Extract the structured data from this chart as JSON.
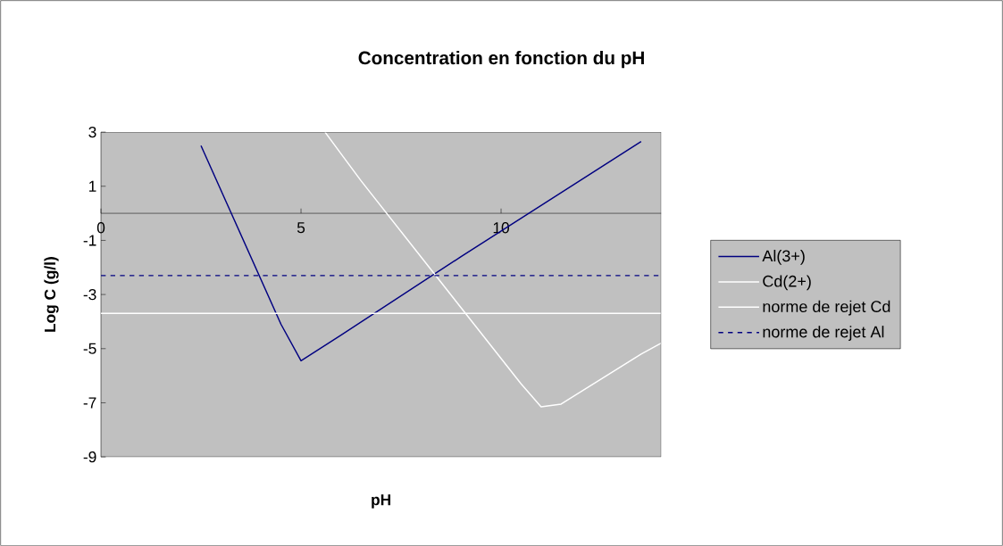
{
  "chart_data": {
    "type": "line",
    "title": "Concentration en fonction du pH",
    "xlabel": "pH",
    "ylabel": "Log C (g/l)",
    "xlim": [
      0,
      14
    ],
    "xticks": [
      0,
      5,
      10
    ],
    "ylim": [
      -9,
      3
    ],
    "yticks": [
      -9,
      -7,
      -5,
      -3,
      -1,
      1,
      3
    ],
    "grid": false,
    "legend": "right",
    "marker": "none",
    "series": [
      {
        "name": "Al(3+)",
        "color": "#000080",
        "x": [
          2.5,
          3.5,
          4.5,
          5,
          6,
          9,
          13.5
        ],
        "values": [
          2.5,
          -0.8,
          -4.1,
          -5.45,
          -4.5,
          -1.6,
          2.65
        ]
      },
      {
        "name": "Cd(2+)",
        "color": "#ffffff",
        "x": [
          5.6,
          6,
          6.5,
          10.5,
          11,
          11.5,
          13.5,
          14
        ],
        "values": [
          3,
          2.2,
          1.2,
          -6.3,
          -7.15,
          -7.05,
          -5.2,
          -4.8
        ]
      },
      {
        "name": "norme de rejet Cd",
        "color": "#ffffff",
        "x": [
          0,
          14
        ],
        "values": [
          -3.7,
          -3.7
        ]
      },
      {
        "name": "norme de rejet Al",
        "color": "#000080",
        "line_style": "dashed",
        "x": [
          0,
          14
        ],
        "values": [
          -2.3,
          -2.3
        ]
      }
    ]
  }
}
